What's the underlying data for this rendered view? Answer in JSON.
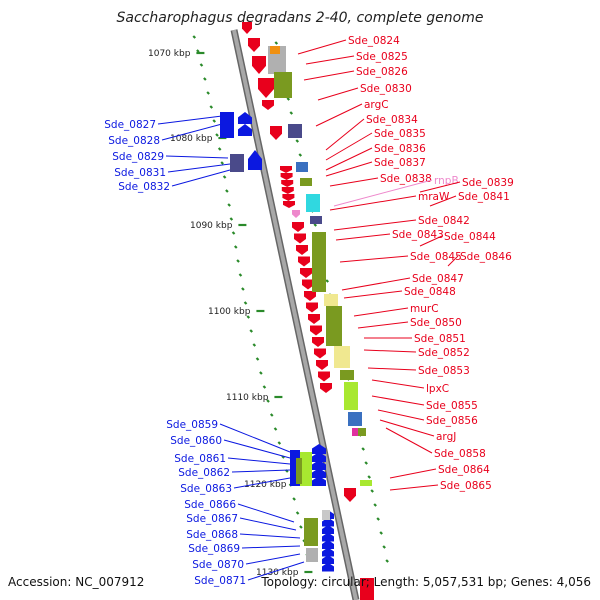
{
  "title": "Saccharophagus degradans 2-40, complete genome",
  "footer": {
    "accession": "Accession: NC_007912",
    "topology": "Topology: circular; Length: 5,057,531 bp; Genes: 4,056"
  },
  "kbp_ticks": [
    {
      "label": "1070 kbp"
    },
    {
      "label": "1080 kbp"
    },
    {
      "label": "1090 kbp"
    },
    {
      "label": "1100 kbp"
    },
    {
      "label": "1110 kbp"
    },
    {
      "label": "1120 kbp"
    },
    {
      "label": "1130 kbp"
    }
  ],
  "right_labels": [
    {
      "text": "Sde_0824",
      "color": "#e8001c"
    },
    {
      "text": "Sde_0825",
      "color": "#e8001c"
    },
    {
      "text": "Sde_0826",
      "color": "#e8001c"
    },
    {
      "text": "Sde_0830",
      "color": "#e8001c"
    },
    {
      "text": "argC",
      "color": "#e8001c"
    },
    {
      "text": "Sde_0834",
      "color": "#e8001c"
    },
    {
      "text": "Sde_0835",
      "color": "#e8001c"
    },
    {
      "text": "Sde_0836",
      "color": "#e8001c"
    },
    {
      "text": "Sde_0837",
      "color": "#e8001c"
    },
    {
      "text": "Sde_0838",
      "color": "#e8001c"
    },
    {
      "text": "rnpB",
      "color": "#ee88cc"
    },
    {
      "text": "Sde_0839",
      "color": "#e8001c"
    },
    {
      "text": "mraW",
      "color": "#e8001c"
    },
    {
      "text": "Sde_0841",
      "color": "#e8001c"
    },
    {
      "text": "Sde_0842",
      "color": "#e8001c"
    },
    {
      "text": "Sde_0843",
      "color": "#e8001c"
    },
    {
      "text": "Sde_0844",
      "color": "#e8001c"
    },
    {
      "text": "Sde_0845",
      "color": "#e8001c"
    },
    {
      "text": "Sde_0846",
      "color": "#e8001c"
    },
    {
      "text": "Sde_0847",
      "color": "#e8001c"
    },
    {
      "text": "Sde_0848",
      "color": "#e8001c"
    },
    {
      "text": "murC",
      "color": "#e8001c"
    },
    {
      "text": "Sde_0850",
      "color": "#e8001c"
    },
    {
      "text": "Sde_0851",
      "color": "#e8001c"
    },
    {
      "text": "Sde_0852",
      "color": "#e8001c"
    },
    {
      "text": "Sde_0853",
      "color": "#e8001c"
    },
    {
      "text": "lpxC",
      "color": "#e8001c"
    },
    {
      "text": "Sde_0855",
      "color": "#e8001c"
    },
    {
      "text": "Sde_0856",
      "color": "#e8001c"
    },
    {
      "text": "argJ",
      "color": "#e8001c"
    },
    {
      "text": "Sde_0858",
      "color": "#e8001c"
    },
    {
      "text": "Sde_0864",
      "color": "#e8001c"
    },
    {
      "text": "Sde_0865",
      "color": "#e8001c"
    }
  ],
  "left_labels": [
    {
      "text": "Sde_0827"
    },
    {
      "text": "Sde_0828"
    },
    {
      "text": "Sde_0829"
    },
    {
      "text": "Sde_0831"
    },
    {
      "text": "Sde_0832"
    },
    {
      "text": "Sde_0859"
    },
    {
      "text": "Sde_0860"
    },
    {
      "text": "Sde_0861"
    },
    {
      "text": "Sde_0862"
    },
    {
      "text": "Sde_0863"
    },
    {
      "text": "Sde_0866"
    },
    {
      "text": "Sde_0867"
    },
    {
      "text": "Sde_0868"
    },
    {
      "text": "Sde_0869"
    },
    {
      "text": "Sde_0870"
    },
    {
      "text": "Sde_0871"
    }
  ],
  "colors": {
    "forward_strand": "#e8001c",
    "reverse_strand": "#0b18e0",
    "backbone": "#8a8a8a",
    "tick_green": "#2a8a2a",
    "olive_feature": "#7a9a20",
    "yellow_feature": "#f0e890",
    "lime_feature": "#a8e830",
    "cyan_feature": "#30d8e0",
    "orange_feature": "#f09010",
    "slate_feature": "#4a4a8a",
    "rna_pink": "#ee88cc"
  }
}
